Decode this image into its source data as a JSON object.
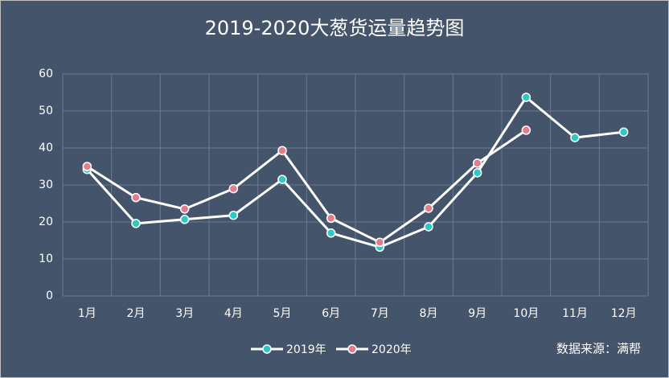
{
  "chart_data": {
    "type": "line",
    "title": "2019-2020大葱货运量趋势图",
    "source": "数据来源：满帮",
    "categories": [
      "1月",
      "2月",
      "3月",
      "4月",
      "5月",
      "6月",
      "7月",
      "8月",
      "9月",
      "10月",
      "11月",
      "12月"
    ],
    "line_color": "#ffffff",
    "series": [
      {
        "name": "2019年",
        "color": "#2ec9c6",
        "values": [
          34.2,
          19.6,
          20.7,
          21.8,
          31.5,
          17,
          13.2,
          18.7,
          33.3,
          53.7,
          42.8,
          44.3
        ]
      },
      {
        "name": "2020年",
        "color": "#e27d8c",
        "values": [
          35,
          26.6,
          23.5,
          29,
          39.3,
          21,
          14.5,
          23.7,
          35.9,
          44.8,
          null,
          null
        ]
      }
    ],
    "ylim": [
      0,
      60
    ],
    "yticks": [
      0,
      10,
      20,
      30,
      40,
      50,
      60
    ],
    "grid": true,
    "legend": "bottom"
  }
}
